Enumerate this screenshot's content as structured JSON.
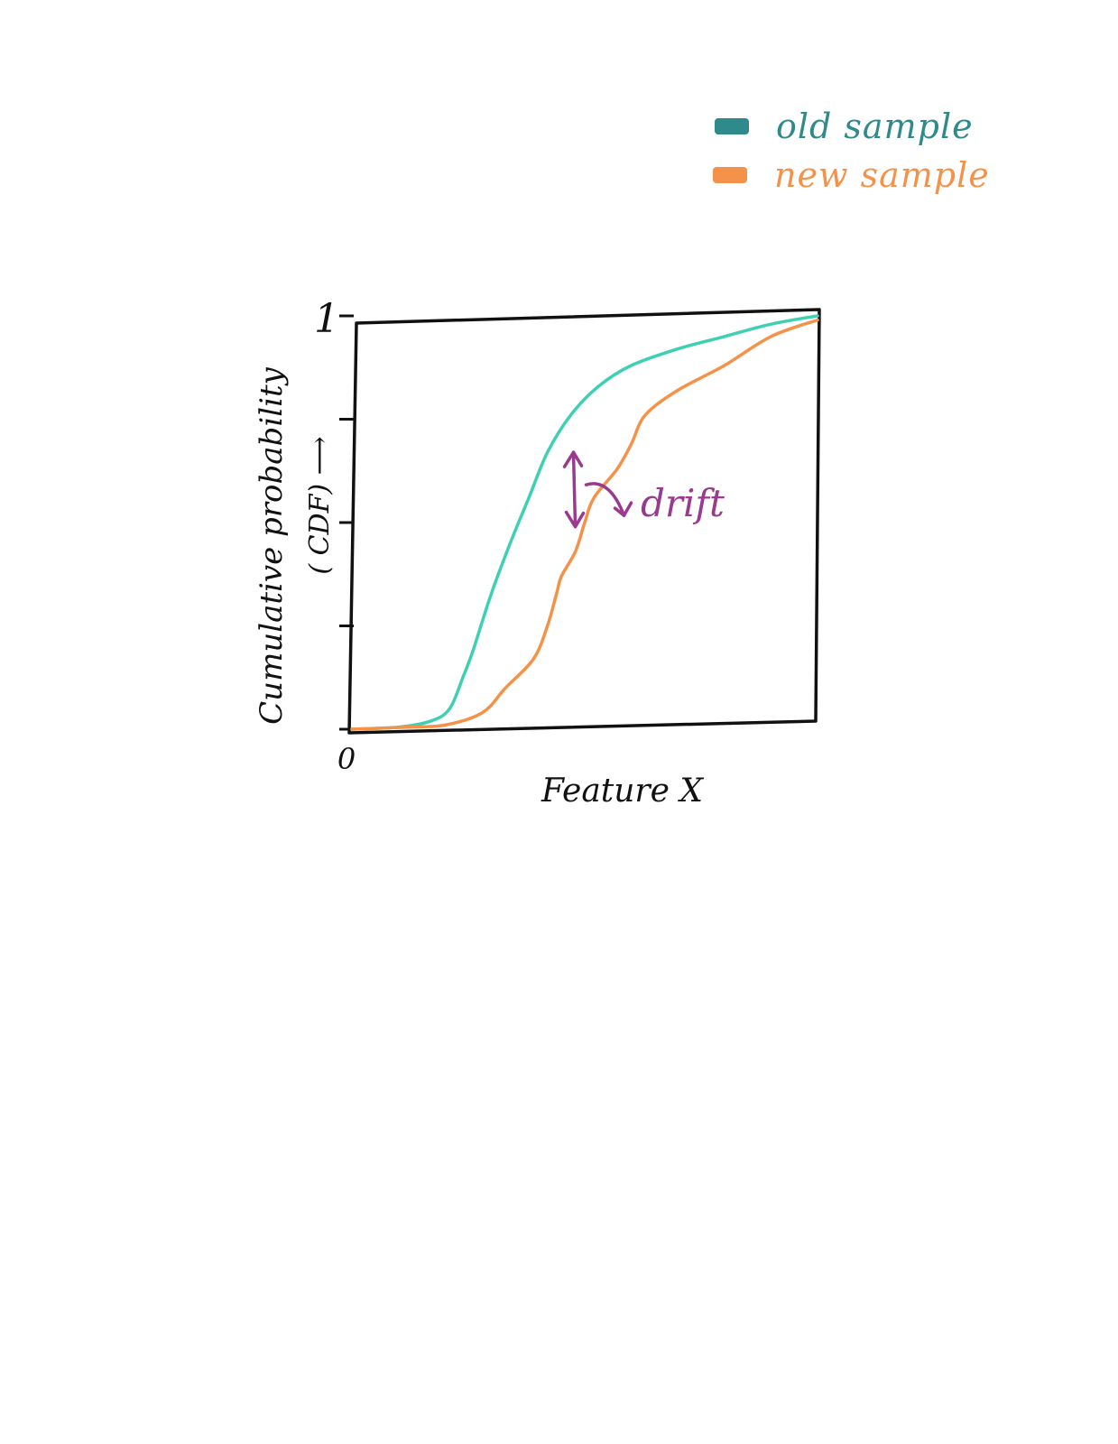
{
  "chart_data": {
    "type": "line",
    "title": "",
    "xlabel": "Feature X",
    "ylabel_line1": "Cumulative probability",
    "ylabel_line2": "( CDF) ⟶",
    "ylim": [
      0,
      1
    ],
    "y_tick_values": [
      0,
      0.25,
      0.5,
      0.75,
      1
    ],
    "y_tick_labels": [
      {
        "value": 0,
        "label": "0"
      },
      {
        "value": 1,
        "label": "1"
      }
    ],
    "xlim": [
      0,
      1
    ],
    "grid": false,
    "legend_position": "top-right",
    "series": [
      {
        "name": "old sample",
        "color": "#2f8a8c",
        "line_color": "#3fd0b4",
        "x": [
          0,
          0.1,
          0.17,
          0.21,
          0.24,
          0.26,
          0.3,
          0.34,
          0.38,
          0.42,
          0.47,
          0.53,
          0.6,
          0.7,
          0.8,
          0.9,
          1.0
        ],
        "y": [
          0,
          0.005,
          0.02,
          0.05,
          0.13,
          0.19,
          0.33,
          0.45,
          0.56,
          0.67,
          0.76,
          0.83,
          0.88,
          0.92,
          0.95,
          0.98,
          1.0
        ]
      },
      {
        "name": "new sample",
        "color": "#f5924a",
        "line_color": "#f5924a",
        "x": [
          0,
          0.12,
          0.2,
          0.28,
          0.33,
          0.39,
          0.42,
          0.44,
          0.45,
          0.48,
          0.5,
          0.52,
          0.57,
          0.6,
          0.63,
          0.7,
          0.8,
          0.9,
          1.0
        ],
        "y": [
          0,
          0.005,
          0.01,
          0.04,
          0.1,
          0.17,
          0.25,
          0.33,
          0.37,
          0.43,
          0.5,
          0.56,
          0.63,
          0.69,
          0.76,
          0.82,
          0.88,
          0.95,
          0.99
        ]
      }
    ],
    "annotation": {
      "text": "drift",
      "color": "#9a3a8e",
      "x": 0.47,
      "y_top": 0.67,
      "y_bottom": 0.49
    }
  }
}
